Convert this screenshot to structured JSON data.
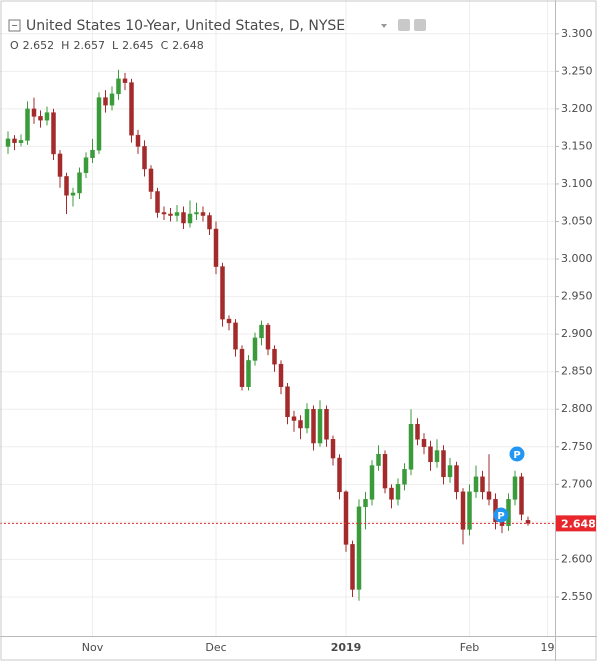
{
  "chart_data": {
    "type": "candlestick",
    "title": "United States 10-Year, United States, D, NYSE",
    "ohlc_labels": [
      "O",
      "H",
      "L",
      "C"
    ],
    "markers": [
      "P",
      "P"
    ],
    "up_color": "#3b9b3b",
    "down_color": "#a32b2b",
    "last_price_color": "#e8262b",
    "grid": true,
    "ylim": [
      2.498,
      3.345
    ],
    "yticks": [
      {
        "value": 2.55,
        "label": "2.550"
      },
      {
        "value": 2.6,
        "label": "2.600"
      },
      {
        "value": 2.65,
        "label": "2.650"
      },
      {
        "value": 2.7,
        "label": "2.700"
      },
      {
        "value": 2.75,
        "label": "2.750"
      },
      {
        "value": 2.8,
        "label": "2.800"
      },
      {
        "value": 2.85,
        "label": "2.850"
      },
      {
        "value": 2.9,
        "label": "2.900"
      },
      {
        "value": 2.95,
        "label": "2.950"
      },
      {
        "value": 3.0,
        "label": "3.000"
      },
      {
        "value": 3.05,
        "label": "3.050"
      },
      {
        "value": 3.1,
        "label": "3.100"
      },
      {
        "value": 3.15,
        "label": "3.150"
      },
      {
        "value": 3.2,
        "label": "3.200"
      },
      {
        "value": 3.25,
        "label": "3.250"
      },
      {
        "value": 3.3,
        "label": "3.300"
      }
    ],
    "categories": [
      null,
      null,
      null,
      null,
      null,
      null,
      null,
      null,
      null,
      null,
      null,
      null,
      null,
      "Nov",
      null,
      null,
      null,
      null,
      null,
      null,
      null,
      null,
      null,
      null,
      null,
      null,
      null,
      null,
      null,
      null,
      null,
      null,
      "Dec",
      null,
      null,
      null,
      null,
      null,
      null,
      null,
      null,
      null,
      null,
      null,
      null,
      null,
      null,
      null,
      null,
      null,
      null,
      null,
      "2019",
      null,
      null,
      null,
      null,
      null,
      null,
      null,
      null,
      null,
      null,
      null,
      null,
      null,
      null,
      null,
      null,
      null,
      null,
      "Feb",
      null,
      null,
      null,
      null,
      null,
      null,
      null,
      null,
      null,
      null,
      null,
      "19"
    ],
    "open": [
      3.15,
      3.16,
      3.155,
      3.158,
      3.2,
      3.19,
      3.185,
      3.195,
      3.14,
      3.11,
      3.085,
      3.088,
      3.115,
      3.135,
      3.145,
      3.215,
      3.205,
      3.22,
      3.24,
      3.235,
      3.165,
      3.15,
      3.12,
      3.09,
      3.062,
      3.06,
      3.058,
      3.062,
      3.048,
      3.06,
      3.062,
      3.058,
      3.04,
      2.99,
      2.92,
      2.915,
      2.88,
      2.83,
      2.865,
      2.895,
      2.912,
      2.88,
      2.86,
      2.83,
      2.79,
      2.785,
      2.775,
      2.8,
      2.755,
      2.8,
      2.76,
      2.735,
      2.69,
      2.62,
      2.56,
      2.67,
      2.68,
      2.725,
      2.74,
      2.695,
      2.68,
      2.7,
      2.72,
      2.78,
      2.76,
      2.75,
      2.73,
      2.745,
      2.71,
      2.725,
      2.69,
      2.64,
      2.69,
      2.71,
      2.69,
      2.68,
      2.65,
      2.645,
      2.68,
      2.71,
      2.652,
      null,
      null,
      null
    ],
    "high": [
      3.17,
      3.165,
      3.166,
      3.21,
      3.215,
      3.198,
      3.203,
      3.2,
      3.145,
      3.115,
      3.095,
      3.122,
      3.142,
      3.16,
      3.222,
      3.225,
      3.23,
      3.252,
      3.248,
      3.24,
      3.172,
      3.158,
      3.125,
      3.095,
      3.07,
      3.068,
      3.072,
      3.07,
      3.078,
      3.075,
      3.07,
      3.062,
      3.05,
      2.995,
      2.925,
      2.92,
      2.885,
      2.872,
      2.902,
      2.918,
      2.915,
      2.885,
      2.865,
      2.835,
      2.798,
      2.792,
      2.808,
      2.805,
      2.812,
      2.805,
      2.765,
      2.74,
      2.692,
      2.625,
      2.68,
      2.69,
      2.732,
      2.752,
      2.745,
      2.7,
      2.708,
      2.728,
      2.8,
      2.788,
      2.768,
      2.758,
      2.76,
      2.752,
      2.735,
      2.73,
      2.695,
      2.7,
      2.725,
      2.718,
      2.74,
      2.688,
      2.658,
      2.688,
      2.718,
      2.715,
      2.657,
      null,
      null,
      null
    ],
    "low": [
      3.14,
      3.145,
      3.15,
      3.152,
      3.18,
      3.175,
      3.178,
      3.132,
      3.095,
      3.06,
      3.07,
      3.08,
      3.108,
      3.128,
      3.14,
      3.195,
      3.198,
      3.212,
      3.225,
      3.155,
      3.14,
      3.11,
      3.08,
      3.055,
      3.052,
      3.05,
      3.05,
      3.04,
      3.042,
      3.052,
      3.05,
      3.032,
      2.98,
      2.91,
      2.905,
      2.87,
      2.825,
      2.825,
      2.858,
      2.885,
      2.872,
      2.85,
      2.82,
      2.78,
      2.77,
      2.76,
      2.768,
      2.745,
      2.75,
      2.75,
      2.725,
      2.68,
      2.61,
      2.55,
      2.545,
      2.64,
      2.672,
      2.718,
      2.688,
      2.668,
      2.672,
      2.692,
      2.712,
      2.752,
      2.74,
      2.718,
      2.722,
      2.7,
      2.702,
      2.68,
      2.62,
      2.632,
      2.682,
      2.68,
      2.672,
      2.64,
      2.635,
      2.638,
      2.672,
      2.652,
      2.645,
      null,
      null,
      null
    ],
    "close": [
      3.16,
      3.155,
      3.158,
      3.2,
      3.19,
      3.185,
      3.195,
      3.14,
      3.11,
      3.085,
      3.088,
      3.115,
      3.135,
      3.145,
      3.215,
      3.205,
      3.22,
      3.24,
      3.235,
      3.165,
      3.15,
      3.12,
      3.09,
      3.062,
      3.06,
      3.058,
      3.062,
      3.048,
      3.06,
      3.062,
      3.058,
      3.04,
      2.99,
      2.92,
      2.915,
      2.88,
      2.83,
      2.865,
      2.895,
      2.912,
      2.88,
      2.86,
      2.83,
      2.79,
      2.785,
      2.775,
      2.8,
      2.755,
      2.8,
      2.76,
      2.735,
      2.69,
      2.62,
      2.56,
      2.67,
      2.68,
      2.725,
      2.74,
      2.695,
      2.68,
      2.7,
      2.72,
      2.78,
      2.76,
      2.75,
      2.73,
      2.745,
      2.71,
      2.725,
      2.69,
      2.64,
      2.69,
      2.71,
      2.69,
      2.68,
      2.65,
      2.645,
      2.68,
      2.71,
      2.66,
      2.648,
      null,
      null,
      null
    ]
  }
}
